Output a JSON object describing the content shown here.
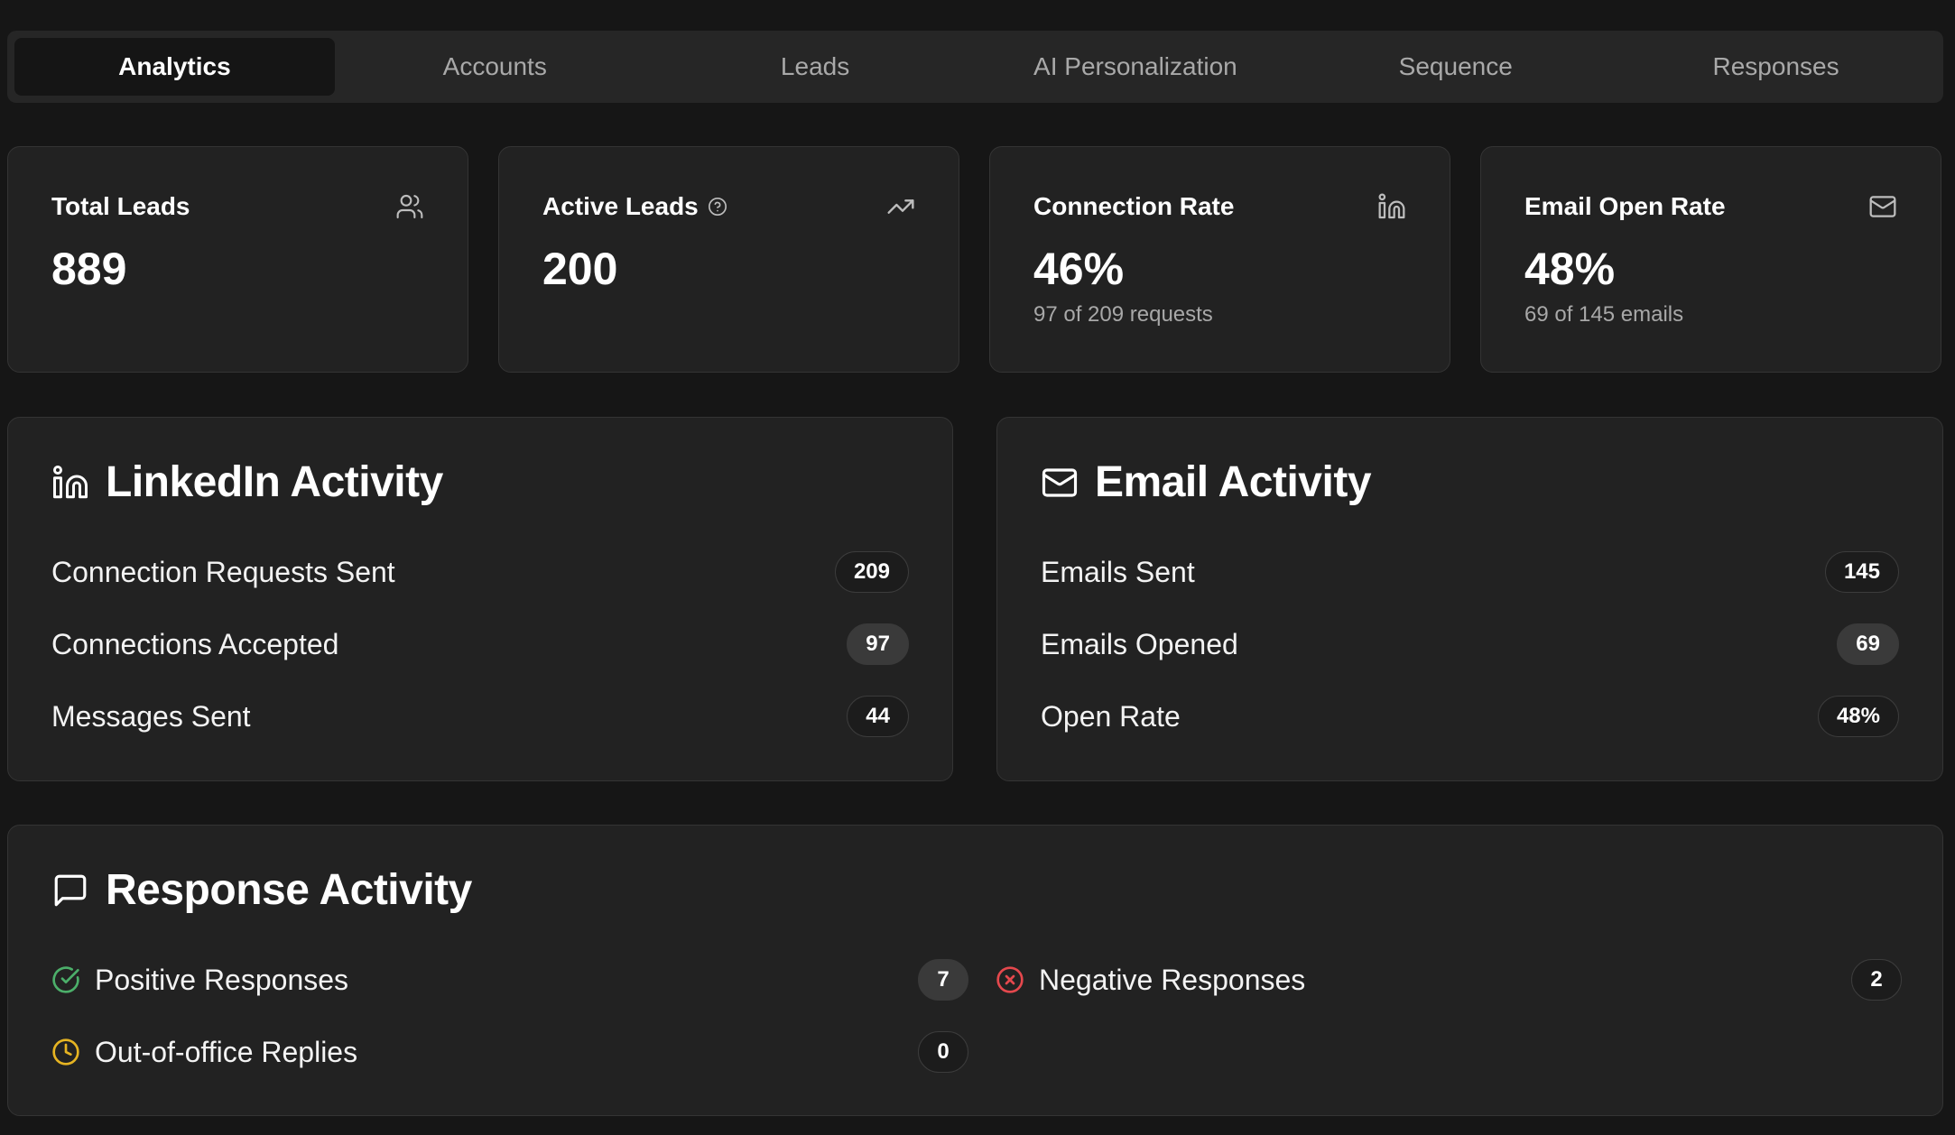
{
  "tabs": [
    {
      "label": "Analytics",
      "active": true
    },
    {
      "label": "Accounts",
      "active": false
    },
    {
      "label": "Leads",
      "active": false
    },
    {
      "label": "AI Personalization",
      "active": false
    },
    {
      "label": "Sequence",
      "active": false
    },
    {
      "label": "Responses",
      "active": false
    }
  ],
  "stats": {
    "total_leads": {
      "label": "Total Leads",
      "value": "889",
      "icon": "users-icon"
    },
    "active_leads": {
      "label": "Active Leads",
      "value": "200",
      "icon": "trending-up-icon",
      "info_icon": "help-circle-icon"
    },
    "connection_rate": {
      "label": "Connection Rate",
      "value": "46%",
      "sub": "97 of 209 requests",
      "icon": "linkedin-icon"
    },
    "email_open_rate": {
      "label": "Email Open Rate",
      "value": "48%",
      "sub": "69 of 145 emails",
      "icon": "mail-icon"
    }
  },
  "linkedin": {
    "title": "LinkedIn Activity",
    "icon": "linkedin-icon",
    "rows": [
      {
        "label": "Connection Requests Sent",
        "value": "209"
      },
      {
        "label": "Connections Accepted",
        "value": "97"
      },
      {
        "label": "Messages Sent",
        "value": "44"
      }
    ]
  },
  "email": {
    "title": "Email Activity",
    "icon": "mail-icon",
    "rows": [
      {
        "label": "Emails Sent",
        "value": "145"
      },
      {
        "label": "Emails Opened",
        "value": "69"
      },
      {
        "label": "Open Rate",
        "value": "48%"
      }
    ]
  },
  "responses": {
    "title": "Response Activity",
    "icon": "message-square-icon",
    "positive": {
      "label": "Positive Responses",
      "value": "7",
      "icon": "check-circle-icon",
      "color": "#4caf6a"
    },
    "negative": {
      "label": "Negative Responses",
      "value": "2",
      "icon": "x-circle-icon",
      "color": "#e5484d"
    },
    "ooo": {
      "label": "Out-of-office Replies",
      "value": "0",
      "icon": "clock-icon",
      "color": "#e6b422"
    }
  },
  "colors": {
    "background": "#161616",
    "card": "#222222",
    "tab_bar": "#262626",
    "active_tab": "#151515"
  }
}
